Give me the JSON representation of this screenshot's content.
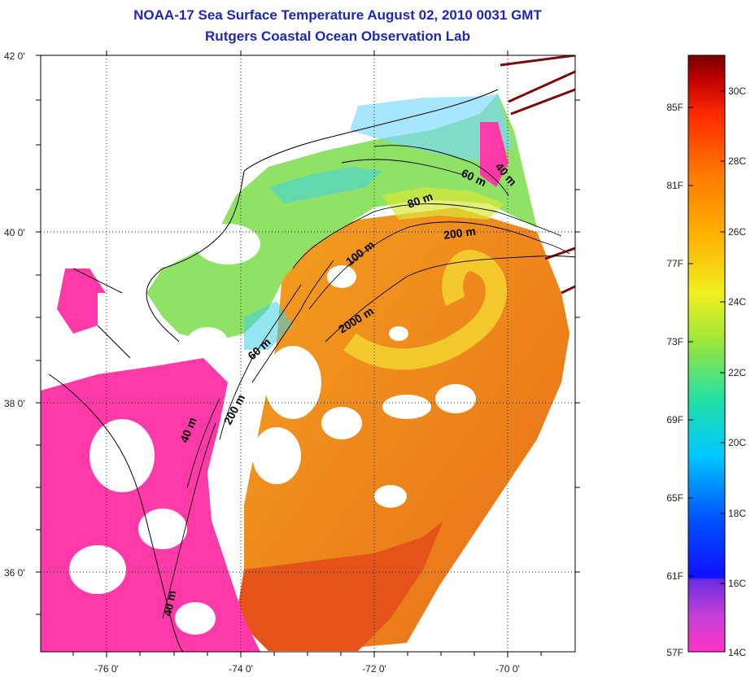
{
  "header": {
    "title": "NOAA-17 Sea Surface Temperature August 02, 2010 0031 GMT",
    "subtitle": "Rutgers Coastal Ocean Observation Lab"
  },
  "map": {
    "lat_ticks": [
      "42 0'",
      "40 0'",
      "38 0'",
      "36 0'"
    ],
    "lon_ticks": [
      "-76 0'",
      "-74 0'",
      "-72 0'",
      "-70 0'"
    ],
    "contour_labels": [
      "40 m",
      "60 m",
      "80 m",
      "200 m",
      "100 m",
      "2000 m",
      "60 m",
      "200 m",
      "40 m",
      "40 m"
    ],
    "colors": {
      "land": "#ffffff",
      "cloud": "#ffffff",
      "cold_nearshore": "#ff3aa8",
      "shelf": "#7ee36a",
      "warm_core": "#f08a1a",
      "hot": "#e5501a",
      "ring_yellow": "#f5d33a",
      "track": "#7a0a0a"
    }
  },
  "colorbar": {
    "fahrenheit": [
      "85F",
      "81F",
      "77F",
      "73F",
      "69F",
      "65F",
      "61F",
      "57F"
    ],
    "celsius": [
      "30C",
      "28C",
      "26C",
      "24C",
      "22C",
      "20C",
      "18C",
      "16C",
      "14C"
    ]
  }
}
